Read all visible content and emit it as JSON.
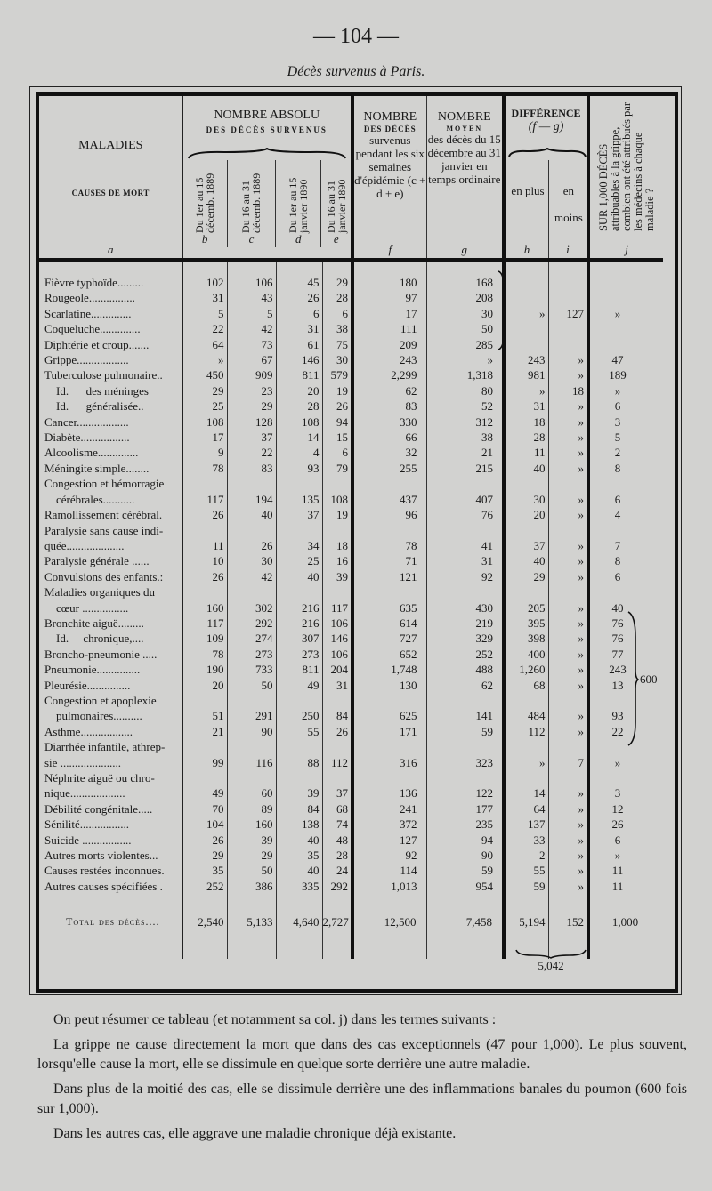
{
  "page": {
    "number": "— 104 —",
    "subtitle": "Décès survenus à Paris."
  },
  "table": {
    "headers": {
      "a_title": "MALADIES",
      "a_sub": "CAUSES DE MORT",
      "a_letter": "a",
      "abs_title": "NOMBRE ABSOLU",
      "abs_sub": "DES DÉCÈS SURVENUS",
      "b": "Du 1er au 15 décemb. 1889",
      "b_letter": "b",
      "c": "Du 16 au 31 décemb. 1889",
      "c_letter": "c",
      "d": "Du 1er au 15 janvier 1890",
      "d_letter": "d",
      "e": "Du 16 au 31 janvier 1890",
      "e_letter": "e",
      "f_title": "NOMBRE",
      "f_sub": "DES DÉCÈS",
      "f_text": "survenus pendant les six semaines d'épidémie (c + d + e)",
      "f_letter": "f",
      "g_title": "NOMBRE",
      "g_sub": "MOYEN",
      "g_text": "des décès du 15 décembre au 31 janvier en temps ordinaire",
      "g_letter": "g",
      "diff_title": "DIFFÉRENCE",
      "diff_formula": "(f — g)",
      "h": "en plus",
      "h_letter": "h",
      "i": "en moins",
      "i_letter": "i",
      "j": "SUR 1,000 DÉCÈS attribuables à la grippe, combien ont été attribués par les médecins à chaque maladie ?",
      "j_letter": "j"
    },
    "rows": [
      {
        "label": [
          "Fièvre typhoïde........."
        ],
        "values": [
          "102",
          "106",
          "45",
          "29",
          "180",
          "168",
          "",
          "",
          ""
        ]
      },
      {
        "label": [
          "Rougeole................"
        ],
        "values": [
          "31",
          "43",
          "26",
          "28",
          "97",
          "208",
          "",
          "",
          ""
        ]
      },
      {
        "label": [
          "Scarlatine.............."
        ],
        "values": [
          "5",
          "5",
          "6",
          "6",
          "17",
          "30",
          "»",
          "127",
          "»"
        ]
      },
      {
        "label": [
          "Coqueluche.............."
        ],
        "values": [
          "22",
          "42",
          "31",
          "38",
          "111",
          "50",
          "",
          "",
          ""
        ]
      },
      {
        "label": [
          "Diphtérie et croup......."
        ],
        "values": [
          "64",
          "73",
          "61",
          "75",
          "209",
          "285",
          "",
          "",
          ""
        ]
      },
      {
        "label": [
          "Grippe.................."
        ],
        "values": [
          "»",
          "67",
          "146",
          "30",
          "243",
          "»",
          "243",
          "»",
          "47"
        ]
      },
      {
        "label": [
          "Tuberculose pulmonaire.."
        ],
        "values": [
          "450",
          "909",
          "811",
          "579",
          "2,299",
          "1,318",
          "981",
          "»",
          "189"
        ]
      },
      {
        "label": [
          "    Id.      des méninges"
        ],
        "values": [
          "29",
          "23",
          "20",
          "19",
          "62",
          "80",
          "»",
          "18",
          "»"
        ]
      },
      {
        "label": [
          "    Id.      généralisée.."
        ],
        "values": [
          "25",
          "29",
          "28",
          "26",
          "83",
          "52",
          "31",
          "»",
          "6"
        ]
      },
      {
        "label": [
          "Cancer.................."
        ],
        "values": [
          "108",
          "128",
          "108",
          "94",
          "330",
          "312",
          "18",
          "»",
          "3"
        ]
      },
      {
        "label": [
          "Diabète................."
        ],
        "values": [
          "17",
          "37",
          "14",
          "15",
          "66",
          "38",
          "28",
          "»",
          "5"
        ]
      },
      {
        "label": [
          "Alcoolisme.............."
        ],
        "values": [
          "9",
          "22",
          "4",
          "6",
          "32",
          "21",
          "11",
          "»",
          "2"
        ]
      },
      {
        "label": [
          "Méningite simple........"
        ],
        "values": [
          "78",
          "83",
          "93",
          "79",
          "255",
          "215",
          "40",
          "»",
          "8"
        ]
      },
      {
        "label": [
          "Congestion et hémorragie",
          "    cérébrales..........."
        ],
        "values": [
          "117",
          "194",
          "135",
          "108",
          "437",
          "407",
          "30",
          "»",
          "6"
        ]
      },
      {
        "label": [
          "Ramollissement cérébral."
        ],
        "values": [
          "26",
          "40",
          "37",
          "19",
          "96",
          "76",
          "20",
          "»",
          "4"
        ]
      },
      {
        "label": [
          "Paralysie sans cause indi-",
          "quée...................."
        ],
        "values": [
          "11",
          "26",
          "34",
          "18",
          "78",
          "41",
          "37",
          "»",
          "7"
        ]
      },
      {
        "label": [
          "Paralysie générale ......"
        ],
        "values": [
          "10",
          "30",
          "25",
          "16",
          "71",
          "31",
          "40",
          "»",
          "8"
        ]
      },
      {
        "label": [
          "Convulsions des enfants.:"
        ],
        "values": [
          "26",
          "42",
          "40",
          "39",
          "121",
          "92",
          "29",
          "»",
          "6"
        ]
      },
      {
        "label": [
          "Maladies organiques du",
          "    cœur ................"
        ],
        "values": [
          "160",
          "302",
          "216",
          "117",
          "635",
          "430",
          "205",
          "»",
          "40"
        ]
      },
      {
        "label": [
          "Bronchite aiguë........."
        ],
        "values": [
          "117",
          "292",
          "216",
          "106",
          "614",
          "219",
          "395",
          "»",
          "76"
        ]
      },
      {
        "label": [
          "    Id.     chronique,...."
        ],
        "values": [
          "109",
          "274",
          "307",
          "146",
          "727",
          "329",
          "398",
          "»",
          "76"
        ]
      },
      {
        "label": [
          "Broncho-pneumonie ....."
        ],
        "values": [
          "78",
          "273",
          "273",
          "106",
          "652",
          "252",
          "400",
          "»",
          "77"
        ]
      },
      {
        "label": [
          "Pneumonie..............."
        ],
        "values": [
          "190",
          "733",
          "811",
          "204",
          "1,748",
          "488",
          "1,260",
          "»",
          "243"
        ]
      },
      {
        "label": [
          "Pleurésie..............."
        ],
        "values": [
          "20",
          "50",
          "49",
          "31",
          "130",
          "62",
          "68",
          "»",
          "13"
        ]
      },
      {
        "label": [
          "Congestion et apoplexie",
          "    pulmonaires.........."
        ],
        "values": [
          "51",
          "291",
          "250",
          "84",
          "625",
          "141",
          "484",
          "»",
          "93"
        ]
      },
      {
        "label": [
          "Asthme.................."
        ],
        "values": [
          "21",
          "90",
          "55",
          "26",
          "171",
          "59",
          "112",
          "»",
          "22"
        ]
      },
      {
        "label": [
          "Diarrhée infantile, athrep-",
          "sie ....................."
        ],
        "values": [
          "99",
          "116",
          "88",
          "112",
          "316",
          "323",
          "»",
          "7",
          "»"
        ]
      },
      {
        "label": [
          "Néphrite aiguë ou chro-",
          "nique..................."
        ],
        "values": [
          "49",
          "60",
          "39",
          "37",
          "136",
          "122",
          "14",
          "»",
          "3"
        ]
      },
      {
        "label": [
          "Débilité congénitale....."
        ],
        "values": [
          "70",
          "89",
          "84",
          "68",
          "241",
          "177",
          "64",
          "»",
          "12"
        ]
      },
      {
        "label": [
          "Sénilité................."
        ],
        "values": [
          "104",
          "160",
          "138",
          "74",
          "372",
          "235",
          "137",
          "»",
          "26"
        ]
      },
      {
        "label": [
          "Suicide ................."
        ],
        "values": [
          "26",
          "39",
          "40",
          "48",
          "127",
          "94",
          "33",
          "»",
          "6"
        ]
      },
      {
        "label": [
          "Autres morts violentes..."
        ],
        "values": [
          "29",
          "29",
          "35",
          "28",
          "92",
          "90",
          "2",
          "»",
          "»"
        ]
      },
      {
        "label": [
          "Causes restées inconnues."
        ],
        "values": [
          "35",
          "50",
          "40",
          "24",
          "114",
          "59",
          "55",
          "»",
          "11"
        ]
      },
      {
        "label": [
          "Autres causes spécifiées ."
        ],
        "values": [
          "252",
          "386",
          "335",
          "292",
          "1,013",
          "954",
          "59",
          "»",
          "11"
        ]
      }
    ],
    "total": {
      "label": "Total des décès....",
      "values": [
        "2,540",
        "5,133",
        "4,640",
        "2,727",
        "12,500",
        "7,458",
        "5,194",
        "152",
        "1,000"
      ]
    },
    "group_j_total": "600",
    "net_difference": "5,042"
  },
  "text": {
    "p1": "On peut résumer ce tableau (et notamment sa col. j) dans les termes suivants :",
    "p2": "La grippe ne cause directement la mort que dans des cas exceptionnels (47 pour 1,000). Le plus souvent, lorsqu'elle cause la mort, elle se dissimule en quelque sorte derrière une autre maladie.",
    "p3": "Dans plus de la moitié des cas, elle se dissimule derrière une des inflammations banales du poumon (600 fois sur 1,000).",
    "p4": "Dans les autres cas, elle aggrave une maladie chronique déjà existante."
  }
}
